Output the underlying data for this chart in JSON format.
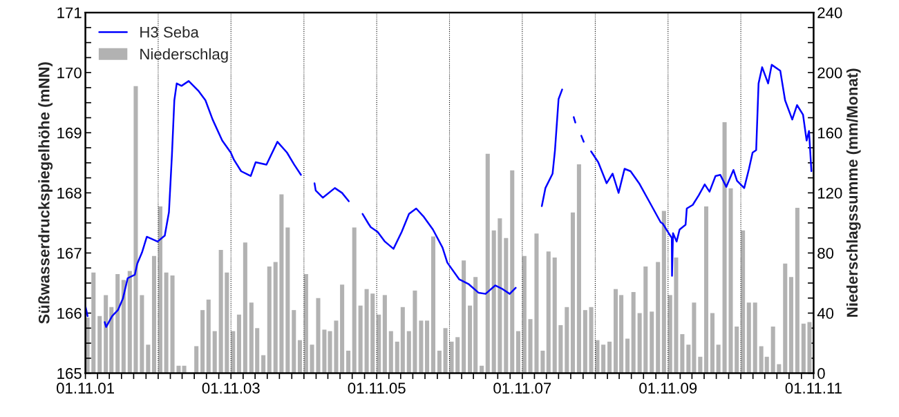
{
  "chart_data": {
    "type": "line",
    "ylabel": "Süßwasserdruckspiegelhöhe (mNN)",
    "y2label": "Niederschlagssumme (mm/Monat)",
    "legend": "top left",
    "xlim": [
      "2001-11-01",
      "2011-11-01"
    ],
    "xticks": [
      {
        "value": "2001-11-01",
        "label": "01.11.01"
      },
      {
        "value": "2002-01-01",
        "label": null
      },
      {
        "value": "2002-03-01",
        "label": null
      },
      {
        "value": "2002-05-01",
        "label": null
      },
      {
        "value": "2002-07-01",
        "label": null
      },
      {
        "value": "2002-09-01",
        "label": null
      },
      {
        "value": "2002-11-01",
        "label": null
      },
      {
        "value": "2003-01-01",
        "label": null
      },
      {
        "value": "2003-03-01",
        "label": null
      },
      {
        "value": "2003-05-01",
        "label": null
      },
      {
        "value": "2003-07-01",
        "label": null
      },
      {
        "value": "2003-09-01",
        "label": null
      },
      {
        "value": "2003-11-01",
        "label": "01.11.03"
      },
      {
        "value": "2004-01-01",
        "label": null
      },
      {
        "value": "2004-03-01",
        "label": null
      },
      {
        "value": "2004-05-01",
        "label": null
      },
      {
        "value": "2004-07-01",
        "label": null
      },
      {
        "value": "2004-09-01",
        "label": null
      },
      {
        "value": "2004-11-01",
        "label": null
      },
      {
        "value": "2005-01-01",
        "label": null
      },
      {
        "value": "2005-03-01",
        "label": null
      },
      {
        "value": "2005-05-01",
        "label": null
      },
      {
        "value": "2005-07-01",
        "label": null
      },
      {
        "value": "2005-09-01",
        "label": null
      },
      {
        "value": "2005-11-01",
        "label": "01.11.05"
      },
      {
        "value": "2006-01-01",
        "label": null
      },
      {
        "value": "2006-03-01",
        "label": null
      },
      {
        "value": "2006-05-01",
        "label": null
      },
      {
        "value": "2006-07-01",
        "label": null
      },
      {
        "value": "2006-09-01",
        "label": null
      },
      {
        "value": "2006-11-01",
        "label": null
      },
      {
        "value": "2007-01-01",
        "label": null
      },
      {
        "value": "2007-03-01",
        "label": null
      },
      {
        "value": "2007-05-01",
        "label": null
      },
      {
        "value": "2007-07-01",
        "label": null
      },
      {
        "value": "2007-09-01",
        "label": null
      },
      {
        "value": "2007-11-01",
        "label": "01.11.07"
      },
      {
        "value": "2008-01-01",
        "label": null
      },
      {
        "value": "2008-03-01",
        "label": null
      },
      {
        "value": "2008-05-01",
        "label": null
      },
      {
        "value": "2008-07-01",
        "label": null
      },
      {
        "value": "2008-09-01",
        "label": null
      },
      {
        "value": "2008-11-01",
        "label": null
      },
      {
        "value": "2009-01-01",
        "label": null
      },
      {
        "value": "2009-03-01",
        "label": null
      },
      {
        "value": "2009-05-01",
        "label": null
      },
      {
        "value": "2009-07-01",
        "label": null
      },
      {
        "value": "2009-09-01",
        "label": null
      },
      {
        "value": "2009-11-01",
        "label": "01.11.09"
      },
      {
        "value": "2010-01-01",
        "label": null
      },
      {
        "value": "2010-03-01",
        "label": null
      },
      {
        "value": "2010-05-01",
        "label": null
      },
      {
        "value": "2010-07-01",
        "label": null
      },
      {
        "value": "2010-09-01",
        "label": null
      },
      {
        "value": "2010-11-01",
        "label": null
      },
      {
        "value": "2011-01-01",
        "label": null
      },
      {
        "value": "2011-03-01",
        "label": null
      },
      {
        "value": "2011-05-01",
        "label": null
      },
      {
        "value": "2011-07-01",
        "label": null
      },
      {
        "value": "2011-09-01",
        "label": null
      },
      {
        "value": "2011-11-01",
        "label": "01.11.11"
      }
    ],
    "ylim": [
      165,
      171
    ],
    "yticks": [
      165,
      {
        "value": 165.25,
        "label": null
      },
      {
        "value": 165.5,
        "label": null
      },
      {
        "value": 165.75,
        "label": null
      },
      166,
      {
        "value": 166.25,
        "label": null
      },
      {
        "value": 166.5,
        "label": null
      },
      {
        "value": 166.75,
        "label": null
      },
      167,
      {
        "value": 167.25,
        "label": null
      },
      {
        "value": 167.5,
        "label": null
      },
      {
        "value": 167.75,
        "label": null
      },
      168,
      {
        "value": 168.25,
        "label": null
      },
      {
        "value": 168.5,
        "label": null
      },
      {
        "value": 168.75,
        "label": null
      },
      169,
      {
        "value": 169.25,
        "label": null
      },
      {
        "value": 169.5,
        "label": null
      },
      {
        "value": 169.75,
        "label": null
      },
      170,
      {
        "value": 170.25,
        "label": null
      },
      {
        "value": 170.5,
        "label": null
      },
      {
        "value": 170.75,
        "label": null
      },
      171
    ],
    "y2lim": [
      0,
      240
    ],
    "y2ticks": [
      0,
      {
        "value": 10,
        "label": null
      },
      {
        "value": 20,
        "label": null
      },
      {
        "value": 30,
        "label": null
      },
      40,
      {
        "value": 50,
        "label": null
      },
      {
        "value": 60,
        "label": null
      },
      {
        "value": 70,
        "label": null
      },
      80,
      {
        "value": 90,
        "label": null
      },
      {
        "value": 100,
        "label": null
      },
      {
        "value": 110,
        "label": null
      },
      120,
      {
        "value": 130,
        "label": null
      },
      {
        "value": 140,
        "label": null
      },
      {
        "value": 150,
        "label": null
      },
      160,
      {
        "value": 170,
        "label": null
      },
      {
        "value": 180,
        "label": null
      },
      {
        "value": 190,
        "label": null
      },
      200,
      {
        "value": 210,
        "label": null
      },
      {
        "value": 220,
        "label": null
      },
      {
        "value": 230,
        "label": null
      },
      240
    ],
    "ref_lines": [
      {
        "axis": "x",
        "value": "2002-11-01",
        "line_style": "dotted",
        "color": "#000000"
      },
      {
        "axis": "x",
        "value": "2003-11-01",
        "line_style": "dotted",
        "color": "#000000"
      },
      {
        "axis": "x",
        "value": "2004-11-01",
        "line_style": "dotted",
        "color": "#000000"
      },
      {
        "axis": "x",
        "value": "2005-11-01",
        "line_style": "dotted",
        "color": "#000000"
      },
      {
        "axis": "x",
        "value": "2006-11-01",
        "line_style": "dotted",
        "color": "#000000"
      },
      {
        "axis": "x",
        "value": "2007-11-01",
        "line_style": "dotted",
        "color": "#000000"
      },
      {
        "axis": "x",
        "value": "2008-11-01",
        "line_style": "dotted",
        "color": "#000000"
      },
      {
        "axis": "x",
        "value": "2009-11-01",
        "line_style": "dotted",
        "color": "#000000"
      },
      {
        "axis": "x",
        "value": "2010-11-01",
        "line_style": "dotted",
        "color": "#000000"
      }
    ],
    "series": [
      {
        "name": "H3 Seba",
        "color": "#0000ff",
        "line_style": "solid",
        "x": [
          "2001-11-02",
          "2001-11-12",
          "2002-01-01",
          "2002-02-06",
          "2002-02-13",
          "2002-03-15",
          "2002-04-13",
          "2002-05-08",
          "2002-06-01",
          "2002-07-07",
          "2002-07-19",
          "2002-08-12",
          "2002-09-05",
          "2002-10-29",
          "2002-12-04",
          "2002-12-25",
          "2003-01-09",
          "2003-01-21",
          "2003-02-02",
          "2003-02-26",
          "2003-04-03",
          "2003-05-21",
          "2003-06-26",
          "2003-08-01",
          "2003-09-18",
          "2003-10-31",
          "2003-11-16",
          "2003-12-22",
          "2004-02-08",
          "2004-03-04",
          "2004-04-27",
          "2004-06-21",
          "2004-08-08",
          "2004-09-13",
          "2004-10-17",
          "2004-11-20",
          "2004-12-24",
          "2004-12-30",
          "2005-02-04",
          "2005-04-05",
          "2005-05-11",
          "2005-06-14",
          "2005-07-20",
          "2005-08-22",
          "2005-09-20",
          "2005-10-02",
          "2005-11-06",
          "2005-12-12",
          "2006-01-24",
          "2006-03-06",
          "2006-04-12",
          "2006-05-18",
          "2006-06-23",
          "2006-08-10",
          "2006-09-27",
          "2006-10-21",
          "2006-12-20",
          "2007-02-06",
          "2007-03-26",
          "2007-05-01",
          "2007-06-18",
          "2007-07-25",
          "2007-08-30",
          "2007-09-29",
          "2007-12-15",
          "2008-02-07",
          "2008-02-25",
          "2008-04-01",
          "2008-04-13",
          "2008-05-01",
          "2008-05-19",
          "2008-06-20",
          "2008-07-16",
          "2008-07-24",
          "2008-08-10",
          "2008-08-23",
          "2008-09-04",
          "2008-09-20",
          "2008-10-11",
          "2008-11-16",
          "2008-12-28",
          "2009-01-27",
          "2009-02-26",
          "2009-03-28",
          "2009-04-27",
          "2009-06-09",
          "2009-08-08",
          "2009-09-25",
          "2009-10-05",
          "2009-11-04",
          "2009-11-20",
          "2009-11-21",
          "2009-11-26",
          "2009-12-14",
          "2009-12-29",
          "2010-01-28",
          "2010-02-03",
          "2010-03-05",
          "2010-04-04",
          "2010-05-04",
          "2010-05-28",
          "2010-06-27",
          "2010-07-21",
          "2010-08-20",
          "2010-09-25",
          "2010-10-13",
          "2010-11-18",
          "2010-12-12",
          "2010-12-30",
          "2011-01-17",
          "2011-01-29",
          "2011-02-16",
          "2011-03-18",
          "2011-04-05",
          "2011-05-18",
          "2011-06-11",
          "2011-07-17",
          "2011-08-10",
          "2011-09-09",
          "2011-09-27",
          "2011-10-09",
          "2011-10-21"
        ],
        "values": [
          166.1,
          165.95,
          null,
          165.85,
          165.77,
          165.95,
          166.05,
          166.24,
          166.58,
          166.64,
          166.82,
          167.01,
          167.27,
          167.19,
          167.29,
          167.68,
          168.63,
          169.54,
          169.82,
          169.78,
          169.86,
          169.7,
          169.54,
          169.22,
          168.87,
          168.67,
          168.55,
          168.36,
          168.28,
          168.51,
          168.47,
          168.85,
          168.67,
          168.47,
          168.3,
          null,
          168.16,
          168.04,
          167.92,
          168.08,
          168.0,
          167.86,
          null,
          167.65,
          167.49,
          167.43,
          167.35,
          167.19,
          167.07,
          167.35,
          167.65,
          167.74,
          167.61,
          167.39,
          167.09,
          166.84,
          166.56,
          166.48,
          166.34,
          166.32,
          166.46,
          166.4,
          166.32,
          166.42,
          null,
          167.78,
          168.08,
          168.32,
          168.71,
          169.56,
          169.72,
          null,
          169.26,
          169.17,
          null,
          168.95,
          168.85,
          null,
          168.69,
          168.51,
          168.16,
          168.32,
          168.0,
          168.4,
          168.36,
          168.16,
          167.8,
          167.51,
          167.49,
          167.33,
          167.25,
          166.62,
          167.33,
          167.19,
          167.39,
          167.47,
          167.74,
          167.8,
          167.96,
          168.14,
          168.02,
          168.28,
          168.3,
          168.1,
          168.38,
          168.2,
          168.08,
          168.4,
          168.67,
          168.71,
          169.82,
          170.09,
          169.82,
          170.13,
          170.03,
          169.54,
          169.22,
          169.46,
          169.3,
          168.87,
          169.03,
          168.36
        ]
      },
      {
        "name": "Niederschlag",
        "type": "bar",
        "axis": "y2",
        "color": "#b2b2b2",
        "x": [
          "2001-11",
          "2001-12",
          "2002-01",
          "2002-02",
          "2002-03",
          "2002-04",
          "2002-05",
          "2002-06",
          "2002-07",
          "2002-08",
          "2002-09",
          "2002-10",
          "2002-11",
          "2002-12",
          "2003-01",
          "2003-02",
          "2003-03",
          "2003-04",
          "2003-05",
          "2003-06",
          "2003-07",
          "2003-08",
          "2003-09",
          "2003-10",
          "2003-11",
          "2003-12",
          "2004-01",
          "2004-02",
          "2004-03",
          "2004-04",
          "2004-05",
          "2004-06",
          "2004-07",
          "2004-08",
          "2004-09",
          "2004-10",
          "2004-11",
          "2004-12",
          "2005-01",
          "2005-02",
          "2005-03",
          "2005-04",
          "2005-05",
          "2005-06",
          "2005-07",
          "2005-08",
          "2005-09",
          "2005-10",
          "2005-11",
          "2005-12",
          "2006-01",
          "2006-02",
          "2006-03",
          "2006-04",
          "2006-05",
          "2006-06",
          "2006-07",
          "2006-08",
          "2006-09",
          "2006-10",
          "2006-11",
          "2006-12",
          "2007-01",
          "2007-02",
          "2007-03",
          "2007-04",
          "2007-05",
          "2007-06",
          "2007-07",
          "2007-08",
          "2007-09",
          "2007-10",
          "2007-11",
          "2007-12",
          "2008-01",
          "2008-02",
          "2008-03",
          "2008-04",
          "2008-05",
          "2008-06",
          "2008-07",
          "2008-08",
          "2008-09",
          "2008-10",
          "2008-11",
          "2008-12",
          "2009-01",
          "2009-02",
          "2009-03",
          "2009-04",
          "2009-05",
          "2009-06",
          "2009-07",
          "2009-08",
          "2009-09",
          "2009-10",
          "2009-11",
          "2009-12",
          "2010-01",
          "2010-02",
          "2010-03",
          "2010-04",
          "2010-05",
          "2010-06",
          "2010-07",
          "2010-08",
          "2010-09",
          "2010-10",
          "2010-11",
          "2010-12",
          "2011-01",
          "2011-02",
          "2011-03",
          "2011-04",
          "2011-05",
          "2011-06",
          "2011-07",
          "2011-08",
          "2011-09",
          "2011-10"
        ],
        "values": [
          37,
          67,
          38,
          52,
          44,
          66,
          62,
          68,
          191,
          52,
          19,
          78,
          111,
          67,
          65,
          5,
          5,
          0,
          18,
          42,
          49,
          28,
          82,
          67,
          28,
          39,
          87,
          47,
          30,
          12,
          71,
          74,
          119,
          97,
          42,
          22,
          66,
          19,
          50,
          29,
          28,
          35,
          59,
          15,
          97,
          45,
          56,
          53,
          39,
          52,
          28,
          21,
          44,
          28,
          55,
          35,
          35,
          91,
          15,
          30,
          21,
          24,
          75,
          45,
          64,
          5,
          146,
          95,
          103,
          90,
          135,
          28,
          78,
          36,
          93,
          15,
          81,
          77,
          32,
          44,
          107,
          139,
          42,
          44,
          22,
          19,
          21,
          56,
          52,
          23,
          54,
          40,
          71,
          41,
          74,
          108,
          52,
          77,
          26,
          19,
          47,
          11,
          111,
          40,
          19,
          167,
          123,
          31,
          95,
          47,
          47,
          18,
          11,
          31,
          6,
          73,
          64,
          110,
          33,
          34
        ]
      }
    ]
  }
}
